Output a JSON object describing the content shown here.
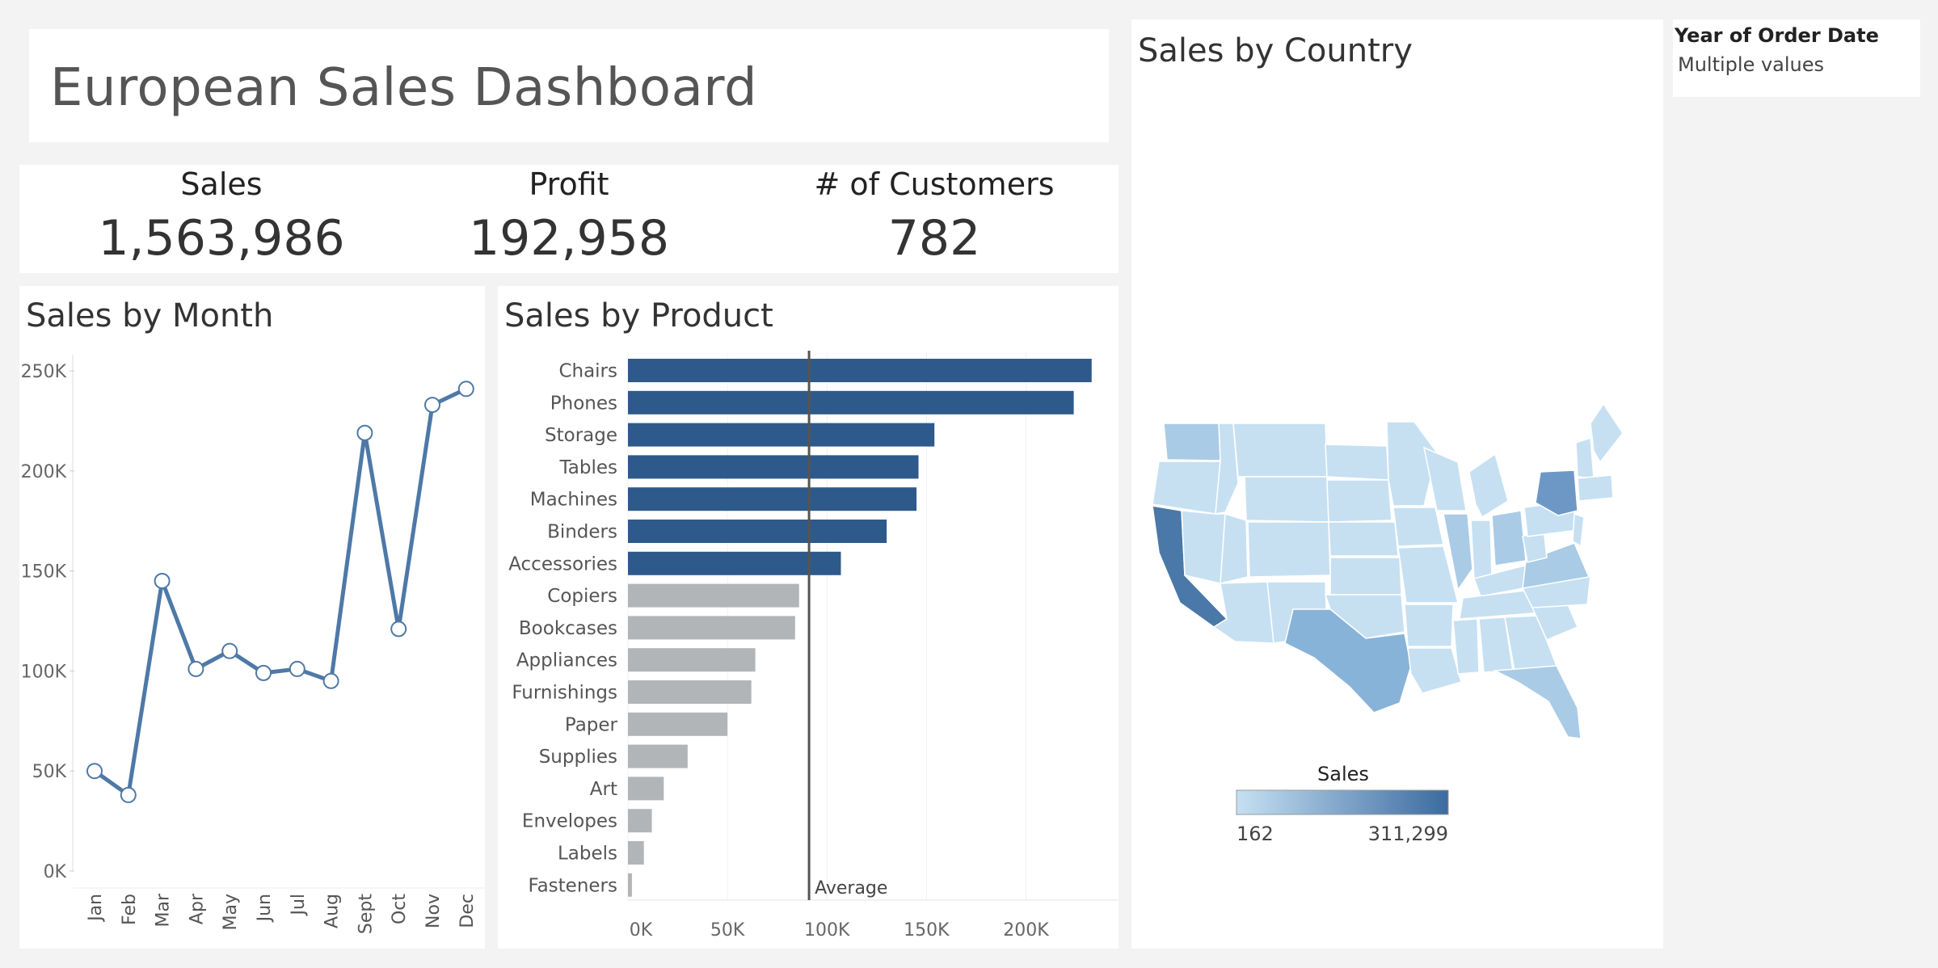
{
  "dashboard": {
    "title": "European Sales Dashboard"
  },
  "kpis": [
    {
      "label": "Sales",
      "value": "1,563,986"
    },
    {
      "label": "Profit",
      "value": "192,958"
    },
    {
      "label": "# of Customers",
      "value": "782"
    }
  ],
  "filter": {
    "title": "Year of Order Date",
    "value": "Multiple values"
  },
  "colors": {
    "line": "#4e79a7",
    "bar_highlight": "#2d5a8b",
    "bar_normal": "#b2b5b8",
    "map_low": "#c6e0f2",
    "map_high": "#3b6ba0",
    "state_border": "#ffffff"
  },
  "chart_data": [
    {
      "type": "line",
      "title": "Sales by Month",
      "categories": [
        "Jan",
        "Feb",
        "Mar",
        "Apr",
        "May",
        "Jun",
        "Jul",
        "Aug",
        "Sept",
        "Oct",
        "Nov",
        "Dec"
      ],
      "values": [
        50000,
        38000,
        145000,
        101000,
        110000,
        99000,
        101000,
        95000,
        219000,
        121000,
        233000,
        241000
      ],
      "ylim": [
        0,
        250000
      ],
      "yticks": [
        "0K",
        "50K",
        "100K",
        "150K",
        "200K",
        "250K"
      ],
      "grid": false
    },
    {
      "type": "bar",
      "orientation": "horizontal",
      "title": "Sales by Product",
      "categories": [
        "Chairs",
        "Phones",
        "Storage",
        "Tables",
        "Machines",
        "Binders",
        "Accessories",
        "Copiers",
        "Bookcases",
        "Appliances",
        "Furnishings",
        "Paper",
        "Supplies",
        "Art",
        "Envelopes",
        "Labels",
        "Fasteners"
      ],
      "values": [
        233000,
        224000,
        154000,
        146000,
        145000,
        130000,
        107000,
        86000,
        84000,
        64000,
        62000,
        50000,
        30000,
        18000,
        12000,
        8000,
        2000
      ],
      "highlighted": [
        true,
        true,
        true,
        true,
        true,
        true,
        true,
        false,
        false,
        false,
        false,
        false,
        false,
        false,
        false,
        false,
        false
      ],
      "average": 91000,
      "average_label": "Average",
      "xlim": [
        0,
        240000
      ],
      "xticks": [
        "0K",
        "50K",
        "100K",
        "150K",
        "200K"
      ]
    },
    {
      "type": "map",
      "title": "Sales by Country",
      "legend": {
        "title": "Sales",
        "min": "162",
        "max": "311,299"
      }
    }
  ]
}
